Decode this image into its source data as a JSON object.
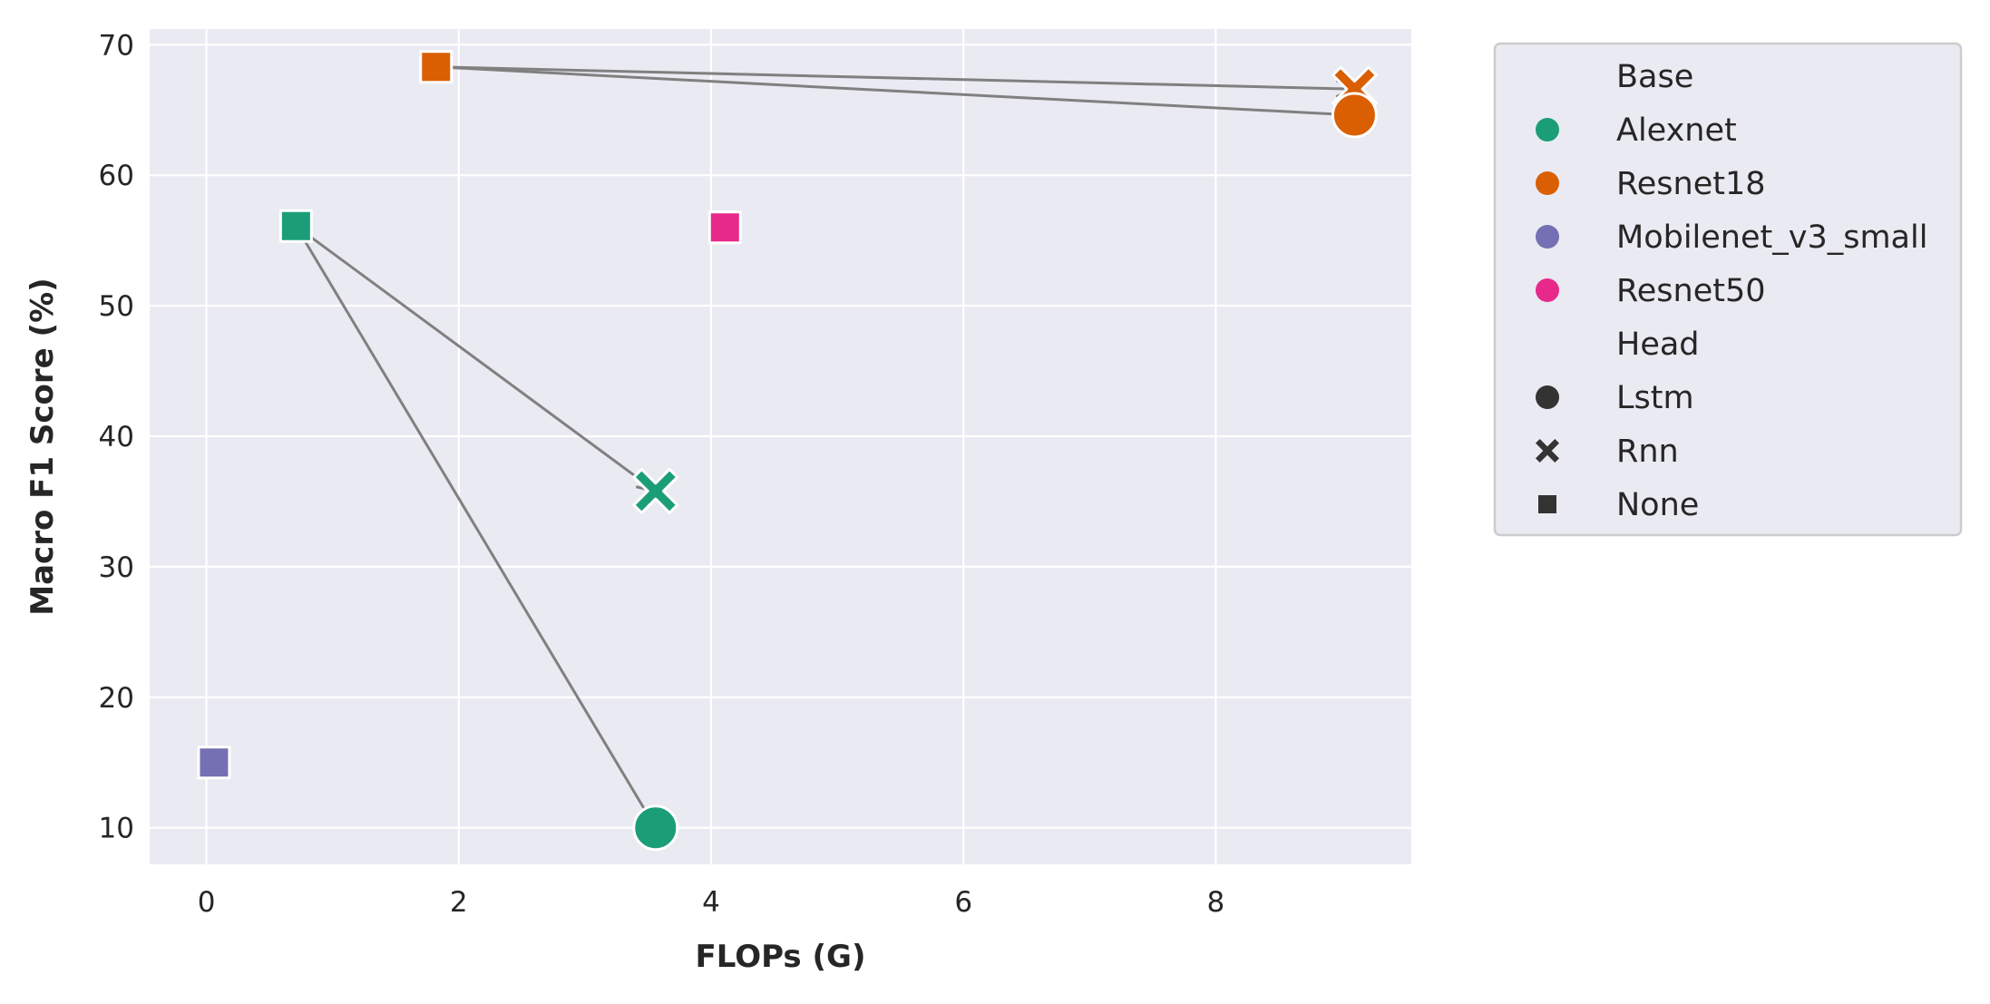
{
  "chart_data": {
    "type": "scatter",
    "xlabel": "FLOPs (G)",
    "ylabel": "Macro F1 Score (%)",
    "xlim": [
      -0.45,
      9.55
    ],
    "ylim": [
      7.2,
      71.2
    ],
    "x_ticks": [
      0,
      2,
      4,
      6,
      8
    ],
    "y_ticks": [
      10,
      20,
      30,
      40,
      50,
      60,
      70
    ],
    "x_tick_labels": [
      "0",
      "2",
      "4",
      "6",
      "8"
    ],
    "y_tick_labels": [
      "10",
      "20",
      "30",
      "40",
      "50",
      "60",
      "70"
    ],
    "grid": true,
    "background": "#eaeaf2",
    "legend": {
      "placement": "outside-right-top",
      "base_title": "Base",
      "head_title": "Head",
      "bases": [
        {
          "name": "Alexnet",
          "color": "#1b9e77"
        },
        {
          "name": "Resnet18",
          "color": "#d95f02"
        },
        {
          "name": "Mobilenet_v3_small",
          "color": "#7570b3"
        },
        {
          "name": "Resnet50",
          "color": "#e7298a"
        }
      ],
      "heads": [
        {
          "name": "Lstm",
          "marker": "circle"
        },
        {
          "name": "Rnn",
          "marker": "x"
        },
        {
          "name": "None",
          "marker": "square"
        }
      ]
    },
    "points": [
      {
        "base": "Alexnet",
        "head": "None",
        "x": 0.71,
        "y": 56.1
      },
      {
        "base": "Alexnet",
        "head": "Rnn",
        "x": 3.56,
        "y": 35.8
      },
      {
        "base": "Alexnet",
        "head": "Lstm",
        "x": 3.56,
        "y": 10.0
      },
      {
        "base": "Resnet18",
        "head": "None",
        "x": 1.82,
        "y": 68.3
      },
      {
        "base": "Resnet18",
        "head": "Rnn",
        "x": 9.1,
        "y": 66.6
      },
      {
        "base": "Resnet18",
        "head": "Lstm",
        "x": 9.1,
        "y": 64.6
      },
      {
        "base": "Mobilenet_v3_small",
        "head": "None",
        "x": 0.06,
        "y": 15.0
      },
      {
        "base": "Resnet50",
        "head": "None",
        "x": 4.11,
        "y": 56.0
      }
    ],
    "arrows": [
      {
        "from": [
          0.71,
          56.1
        ],
        "to": [
          3.56,
          35.8
        ]
      },
      {
        "from": [
          0.71,
          56.1
        ],
        "to": [
          3.56,
          10.0
        ]
      },
      {
        "from": [
          1.82,
          68.3
        ],
        "to": [
          9.1,
          66.6
        ]
      },
      {
        "from": [
          1.82,
          68.3
        ],
        "to": [
          9.1,
          64.6
        ]
      }
    ],
    "arrow_color": "#808080"
  }
}
